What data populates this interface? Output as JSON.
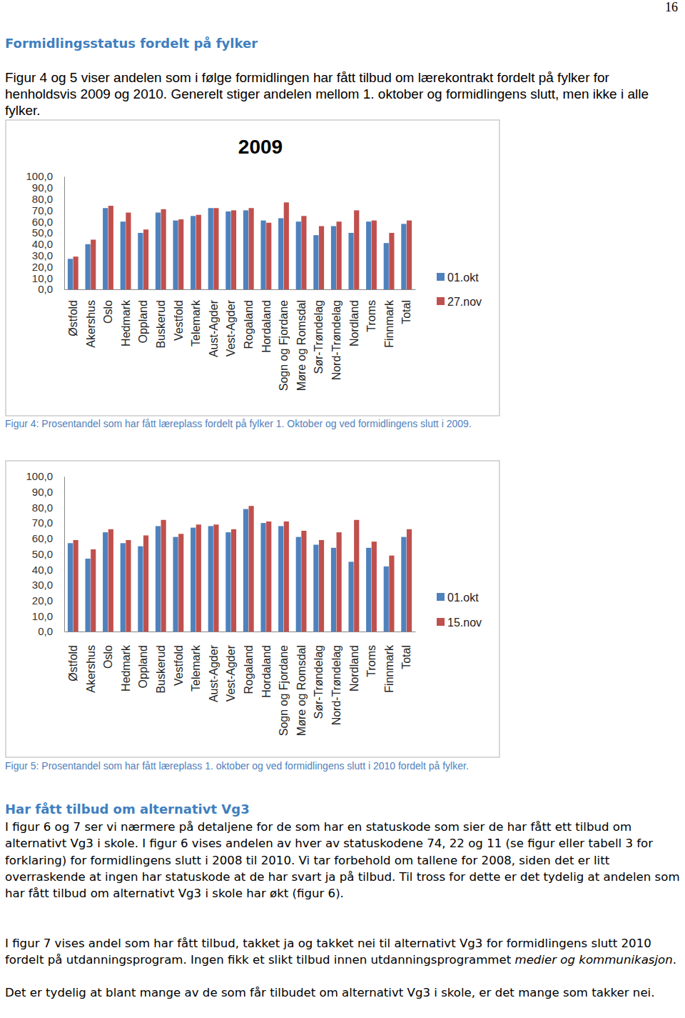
{
  "page": {
    "page_number": "16",
    "heading": "Formidlingsstatus fordelt på fylker",
    "intro": "Figur 4 og 5 viser andelen som i følge formidlingen har fått tilbud om lærekontrakt fordelt på fylker for henholdsvis 2009 og 2010. Generelt stiger andelen mellom 1. oktober og formidlingens slutt, men ikke i alle fylker.",
    "caption_1": "Figur 4: Prosentandel som har fått læreplass fordelt på fylker 1. Oktober og ved formidlingens slutt i 2009.",
    "caption_2": "Figur 5: Prosentandel som har fått læreplass 1. oktober og ved formidlingens slutt i 2010 fordelt på fylker.",
    "subheading": "Har fått tilbud om alternativt Vg3",
    "paragraph_1": "I figur 6 og 7 ser vi nærmere på detaljene for de som har en statuskode som sier de har fått ett tilbud om alternativt Vg3 i skole. I figur 6 vises andelen av hver av statuskodene 74, 22 og 11 (se figur eller tabell 3 for forklaring) for formidlingens slutt i 2008 til 2010. Vi tar forbehold om tallene for 2008, siden det er litt overraskende at ingen har statuskode at de har svart ja på tilbud. Til tross for dette er det tydelig at andelen som har fått tilbud om alternativt Vg3 i skole har økt (figur 6).",
    "paragraph_2": [
      "I figur 7 vises andel som har fått tilbud, takket ja og takket nei til alternativt Vg3 for formidlingens slutt 2010 fordelt på utdanningsprogram. Ingen fikk et slikt tilbud innen utdanningsprogrammet ",
      "medier og kommunikasjon",
      "."
    ],
    "paragraph_3": "Det er tydelig at blant mange av de som får tilbudet om alternativt Vg3 i skole, er det mange som takker nei."
  },
  "chart_data": [
    {
      "type": "bar",
      "title": "2009",
      "categories": [
        "Østfold",
        "Akershus",
        "Oslo",
        "Hedmark",
        "Oppland",
        "Buskerud",
        "Vestfold",
        "Telemark",
        "Aust-Agder",
        "Vest-Agder",
        "Rogaland",
        "Hordaland",
        "Sogn og Fjordane",
        "Møre og Romsdal",
        "Sør-Trøndelag",
        "Nord-Trøndelag",
        "Nordland",
        "Troms",
        "Finnmark",
        "Total"
      ],
      "series": [
        {
          "name": "01.okt",
          "color": "#4f81bd",
          "values": [
            27,
            40,
            72,
            60,
            50,
            68,
            61,
            65,
            72,
            69,
            70,
            61,
            63,
            60,
            48,
            56,
            50,
            60,
            41,
            58
          ]
        },
        {
          "name": "27.nov",
          "color": "#c0504d",
          "values": [
            29,
            44,
            74,
            68,
            53,
            71,
            62,
            66,
            72,
            70,
            72,
            59,
            77,
            65,
            56,
            60,
            70,
            61,
            50,
            61
          ]
        }
      ],
      "ylim": [
        0,
        100
      ],
      "yticks": [
        {
          "value": 0,
          "label": "0,0"
        },
        {
          "value": 10,
          "label": "10,0"
        },
        {
          "value": 20,
          "label": "20,0"
        },
        {
          "value": 30,
          "label": "30,0"
        },
        {
          "value": 40,
          "label": "40,0"
        },
        {
          "value": 50,
          "label": "50,0"
        },
        {
          "value": 60,
          "label": "60,0"
        },
        {
          "value": 70,
          "label": "70,0"
        },
        {
          "value": 80,
          "label": "80,0"
        },
        {
          "value": 90,
          "label": "90,0"
        },
        {
          "value": 100,
          "label": "100,0"
        }
      ],
      "grid": false,
      "legend": "right"
    },
    {
      "type": "bar",
      "categories": [
        "Østfold",
        "Akershus",
        "Oslo",
        "Hedmark",
        "Oppland",
        "Buskerud",
        "Vestfold",
        "Telemark",
        "Aust-Agder",
        "Vest-Agder",
        "Rogaland",
        "Hordaland",
        "Sogn og Fjordane",
        "Møre og Romsdal",
        "Sør-Trøndelag",
        "Nord-Trøndelag",
        "Nordland",
        "Troms",
        "Finnmark",
        "Total"
      ],
      "series": [
        {
          "name": "01.okt",
          "color": "#4f81bd",
          "values": [
            57,
            47,
            64,
            57,
            55,
            68,
            61,
            67,
            68,
            64,
            79,
            70,
            68,
            61,
            56,
            54,
            45,
            54,
            42,
            61
          ]
        },
        {
          "name": "15.nov",
          "color": "#c0504d",
          "values": [
            59,
            53,
            66,
            59,
            62,
            72,
            63,
            69,
            69,
            66,
            81,
            71,
            71,
            65,
            59,
            64,
            72,
            58,
            49,
            66
          ]
        }
      ],
      "ylim": [
        0,
        100
      ],
      "yticks": [
        {
          "value": 0,
          "label": "0,0"
        },
        {
          "value": 10,
          "label": "10,0"
        },
        {
          "value": 20,
          "label": "20,0"
        },
        {
          "value": 30,
          "label": "30,0"
        },
        {
          "value": 40,
          "label": "40,0"
        },
        {
          "value": 50,
          "label": "50,0"
        },
        {
          "value": 60,
          "label": "60,0"
        },
        {
          "value": 70,
          "label": "70,0"
        },
        {
          "value": 80,
          "label": "80,0"
        },
        {
          "value": 90,
          "label": "90,0"
        },
        {
          "value": 100,
          "label": "100,0"
        }
      ],
      "grid": false,
      "legend": "right"
    }
  ]
}
